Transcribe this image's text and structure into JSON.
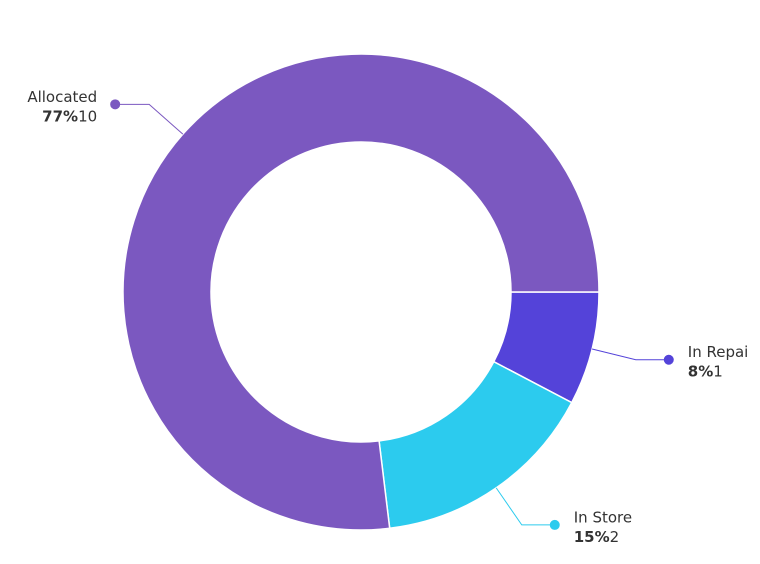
{
  "chart_data": {
    "type": "donut",
    "categories": [
      "In Repai",
      "In Store",
      "Allocated"
    ],
    "values": [
      1,
      2,
      10
    ],
    "value_labels": [
      "8%",
      "15%",
      "77%"
    ],
    "colors": [
      "#5443d9",
      "#2ccbee",
      "#7b58c0"
    ]
  }
}
